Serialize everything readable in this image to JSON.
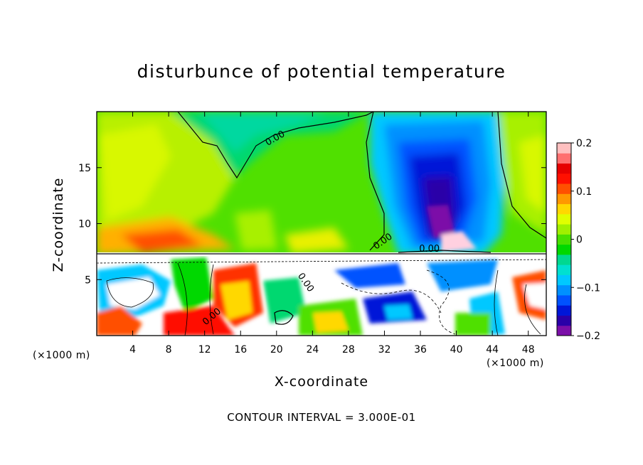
{
  "chart_data": {
    "type": "heatmap",
    "title": "disturbunce of potential temperature",
    "xlabel": "X-coordinate",
    "ylabel": "Z-coordinate",
    "x_unit": "(×1000 m)",
    "xlim": [
      0,
      50
    ],
    "ylim": [
      0,
      20
    ],
    "x_ticks": [
      4,
      8,
      12,
      16,
      20,
      24,
      28,
      32,
      36,
      40,
      44,
      48
    ],
    "y_ticks": [
      5,
      10,
      15
    ],
    "colorbar": {
      "range": [
        -0.2,
        0.2
      ],
      "ticks": [
        {
          "value": 0.2,
          "label": "0.2"
        },
        {
          "value": 0.1,
          "label": "0.1"
        },
        {
          "value": 0.0,
          "label": "0"
        },
        {
          "value": -0.1,
          "label": "-0.1"
        },
        {
          "value": -0.2,
          "label": "-0.2"
        }
      ],
      "colors": [
        "#7b0fa8",
        "#2a00a8",
        "#0016d8",
        "#0052ff",
        "#0090ff",
        "#00c8ff",
        "#00e0d0",
        "#00d890",
        "#00d800",
        "#48e000",
        "#a0f000",
        "#e0ff00",
        "#ffd800",
        "#ff9800",
        "#ff5000",
        "#ff1000",
        "#e60000",
        "#ff7070",
        "#ffc0c0"
      ]
    },
    "contour_labels": [
      {
        "text": "0.00",
        "x": 20,
        "y": 17.4
      },
      {
        "text": "0.00",
        "x": 32,
        "y": 8.2
      },
      {
        "text": "0.00",
        "x": 37,
        "y": 7.5
      },
      {
        "text": "0.00",
        "x": 23,
        "y": 4.6
      },
      {
        "text": "0.00",
        "x": 13,
        "y": 1.5
      }
    ],
    "annotation": "CONTOUR INTERVAL = 3.000E-01"
  }
}
